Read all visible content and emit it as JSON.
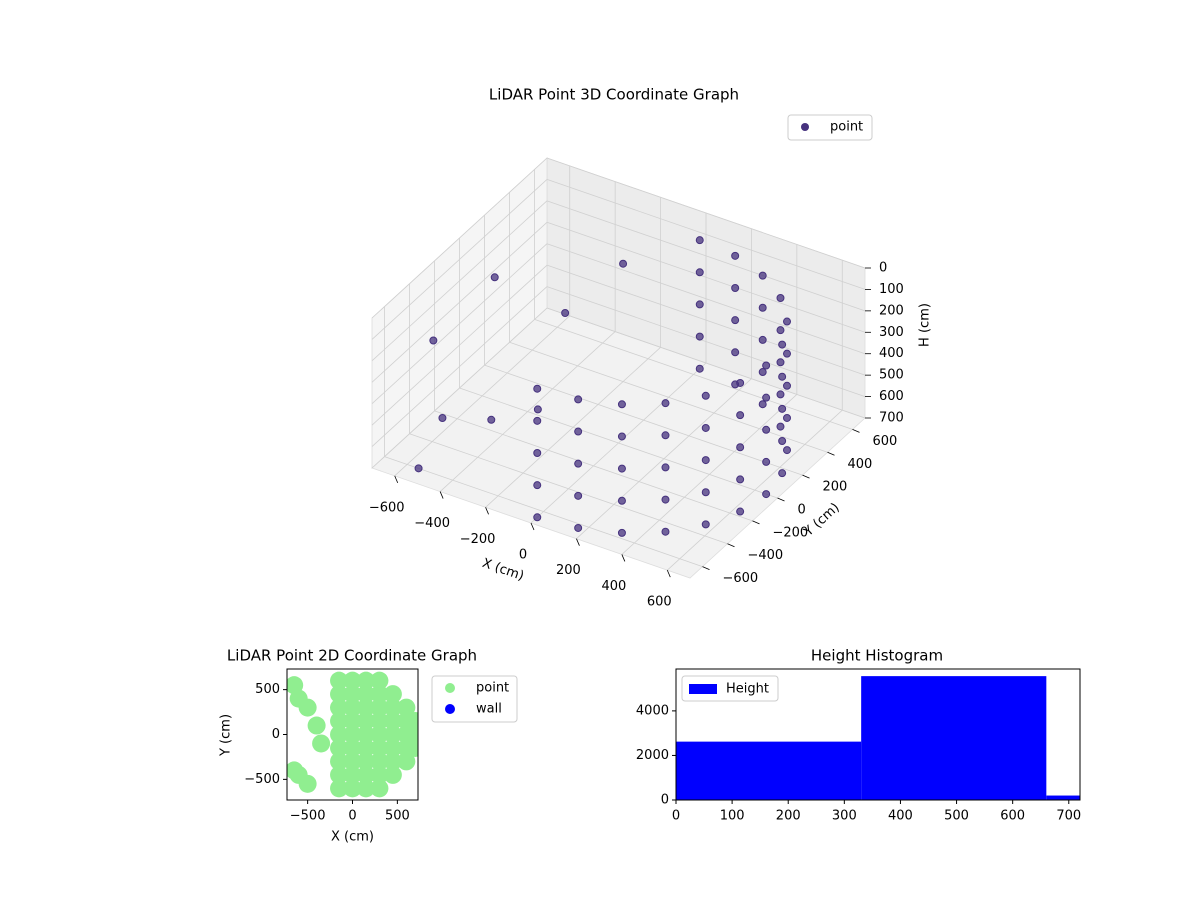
{
  "chart_data": [
    {
      "type": "scatter3d",
      "title": "LiDAR Point 3D Coordinate Graph",
      "x_label": "X (cm)",
      "y_label": "Y (cm)",
      "z_label": "H (cm)",
      "xlim": [
        -700,
        700
      ],
      "ylim": [
        -700,
        700
      ],
      "zlim": [
        700,
        0
      ],
      "xticks": [
        {
          "value": -600,
          "label": "−600"
        },
        {
          "value": -400,
          "label": "−400"
        },
        {
          "value": -200,
          "label": "−200"
        },
        0,
        200,
        400,
        600
      ],
      "yticks": [
        {
          "value": -600,
          "label": "−600"
        },
        {
          "value": -400,
          "label": "−400"
        },
        {
          "value": -200,
          "label": "−200"
        },
        0,
        200,
        400,
        600
      ],
      "zticks": [
        0,
        100,
        200,
        300,
        400,
        500,
        600,
        700
      ],
      "grid": true,
      "legend": "upper right",
      "series": [
        {
          "name": "point",
          "color": "#46327e",
          "x": [
            0,
            168,
            325,
            460,
            563,
            628,
            650,
            628,
            563,
            460,
            325,
            168,
            0,
            0,
            168,
            325,
            460,
            563,
            628,
            650,
            628,
            563,
            460,
            325,
            168,
            0,
            0,
            168,
            325,
            460,
            563,
            628,
            650,
            628,
            563,
            460,
            325,
            168,
            0,
            0,
            168,
            325,
            460,
            563,
            628,
            650,
            628,
            563,
            460,
            325,
            168,
            0,
            0,
            168,
            325,
            460,
            563,
            628,
            650,
            628,
            563,
            460,
            325,
            168,
            0,
            -650,
            -600,
            -500,
            -400,
            -300,
            -550,
            -200,
            -450
          ],
          "y": [
            -650,
            -628,
            -563,
            -460,
            -325,
            -168,
            0,
            168,
            325,
            460,
            563,
            628,
            650,
            -650,
            -628,
            -563,
            -460,
            -325,
            -168,
            0,
            168,
            325,
            460,
            563,
            628,
            650,
            -650,
            -628,
            -563,
            -460,
            -325,
            -168,
            0,
            168,
            325,
            460,
            563,
            628,
            650,
            -650,
            -628,
            -563,
            -460,
            -325,
            -168,
            0,
            168,
            325,
            460,
            563,
            628,
            650,
            -650,
            -628,
            -563,
            -460,
            -325,
            -168,
            0,
            168,
            325,
            460,
            563,
            628,
            650,
            -300,
            100,
            -500,
            300,
            -100,
            -600,
            400,
            -200
          ],
          "z": [
            100,
            100,
            100,
            100,
            100,
            100,
            100,
            100,
            100,
            100,
            100,
            100,
            100,
            250,
            250,
            250,
            250,
            250,
            250,
            250,
            250,
            250,
            250,
            250,
            250,
            250,
            400,
            400,
            400,
            400,
            400,
            400,
            400,
            400,
            400,
            400,
            400,
            400,
            400,
            550,
            550,
            550,
            550,
            550,
            550,
            550,
            550,
            550,
            550,
            550,
            550,
            550,
            700,
            700,
            700,
            700,
            700,
            700,
            700,
            700,
            700,
            700,
            700,
            700,
            700,
            300,
            200,
            500,
            400,
            600,
            700,
            150,
            650
          ]
        }
      ]
    },
    {
      "type": "scatter",
      "title": "LiDAR Point 2D Coordinate Graph",
      "x_label": "X (cm)",
      "y_label": "Y (cm)",
      "xlim": [
        -730,
        730
      ],
      "ylim": [
        -730,
        730
      ],
      "xticks": [
        {
          "value": -500,
          "label": "−500"
        },
        0,
        500
      ],
      "yticks": [
        {
          "value": -500,
          "label": "−500"
        },
        0,
        500
      ],
      "legend": "outside right",
      "series": [
        {
          "name": "point",
          "color": "#90ee90",
          "x": [
            -150,
            -150,
            -150,
            -150,
            -150,
            -150,
            -150,
            -150,
            -150,
            0,
            0,
            0,
            0,
            0,
            0,
            0,
            0,
            0,
            150,
            150,
            150,
            150,
            150,
            150,
            150,
            150,
            150,
            300,
            300,
            300,
            300,
            300,
            300,
            300,
            300,
            300,
            450,
            450,
            450,
            450,
            450,
            450,
            450,
            600,
            600,
            600,
            600,
            600,
            700,
            700,
            700,
            -650,
            -600,
            -500,
            -400,
            -350,
            -600,
            -500,
            -650
          ],
          "y": [
            -600,
            -450,
            -300,
            -150,
            0,
            150,
            300,
            450,
            600,
            -600,
            -450,
            -300,
            -150,
            0,
            150,
            300,
            450,
            600,
            -600,
            -450,
            -300,
            -150,
            0,
            150,
            300,
            450,
            600,
            -600,
            -450,
            -300,
            -150,
            0,
            150,
            300,
            450,
            600,
            -450,
            -300,
            -150,
            0,
            150,
            300,
            450,
            -300,
            -150,
            0,
            150,
            300,
            -150,
            0,
            150,
            550,
            400,
            300,
            100,
            -100,
            -450,
            -550,
            -400
          ]
        },
        {
          "name": "wall",
          "color": "#0000ff",
          "x": [],
          "y": []
        }
      ]
    },
    {
      "type": "histogram",
      "title": "Height Histogram",
      "bins": [
        0,
        330,
        660,
        720
      ],
      "values": [
        2620,
        5560,
        200
      ],
      "xlim": [
        0,
        720
      ],
      "ylim": [
        0,
        5880
      ],
      "xticks": [
        0,
        100,
        200,
        300,
        400,
        500,
        600,
        700
      ],
      "yticks": [
        0,
        2000,
        4000
      ],
      "legend": "upper left",
      "series_name": "Height",
      "color": "#0000ff"
    }
  ]
}
